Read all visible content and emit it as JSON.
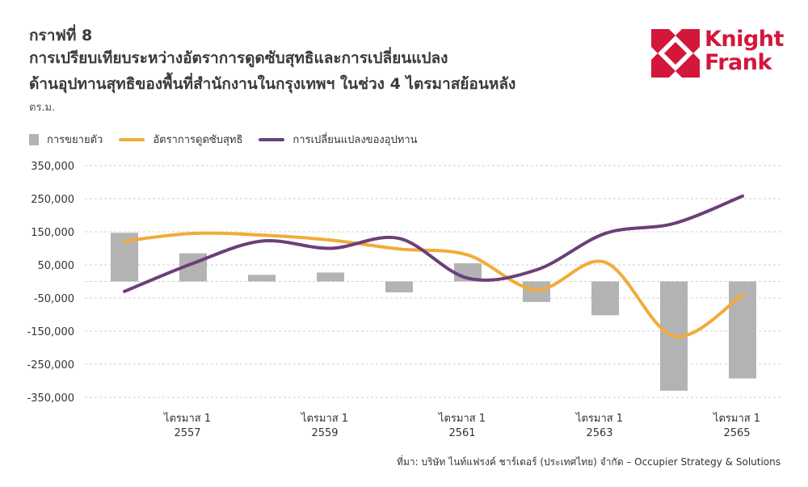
{
  "header": {
    "figure_number": "กราฟที่ 8",
    "title_line1": "การเปรียบเทียบระหว่างอัตราการดูดซับสุทธิและการเปลี่ยนแปลง",
    "title_line2": "ด้านอุปทานสุทธิของพื้นที่สำนักงานในกรุงเทพฯ ในช่วง 4 ไตรมาสย้อนหลัง",
    "unit": "ตร.ม."
  },
  "logo": {
    "line1": "Knight",
    "line2": "Frank",
    "color": "#d2173b"
  },
  "legend": [
    {
      "label": "การขยายตัว",
      "kind": "bar",
      "color": "#b3b3b3"
    },
    {
      "label": "อัตราการดูดซับสุทธิ",
      "kind": "line",
      "color": "#f2ab3a"
    },
    {
      "label": "การเปลี่ยนแปลงของอุปทาน",
      "kind": "line",
      "color": "#6b3f78"
    }
  ],
  "source": "ที่มา: บริษัท ไนท์แฟรงค์ ชาร์เตอร์ (ประเทศไทย) จำกัด – Occupier Strategy & Solutions",
  "chart_data": {
    "type": "bar",
    "title": "การเปรียบเทียบระหว่างอัตราการดูดซับสุทธิและการเปลี่ยนแปลงด้านอุปทานสุทธิของพื้นที่สำนักงานในกรุงเทพฯ ในช่วง 4 ไตรมาสย้อนหลัง",
    "ylabel": "ตร.ม.",
    "ylim": [
      -350000,
      350000
    ],
    "yticks": [
      350000,
      250000,
      150000,
      50000,
      -50000,
      -150000,
      -250000,
      -350000
    ],
    "ytick_labels": [
      "350,000",
      "250,000",
      "150,000",
      "50,000",
      "-50,000",
      "-150,000",
      "-250,000",
      "-350,000"
    ],
    "grid": true,
    "legend_position": "top-left",
    "x_labels": [
      {
        "index": 1,
        "line1": "ไตรมาส 1",
        "line2": "2557"
      },
      {
        "index": 3,
        "line1": "ไตรมาส 1",
        "line2": "2559"
      },
      {
        "index": 5,
        "line1": "ไตรมาส 1",
        "line2": "2561"
      },
      {
        "index": 7,
        "line1": "ไตรมาส 1",
        "line2": "2563"
      },
      {
        "index": 9,
        "line1": "ไตรมาส 1",
        "line2": "2565"
      }
    ],
    "series": [
      {
        "name": "การขยายตัว",
        "type": "bar",
        "color": "#b3b3b3",
        "values": [
          147000,
          85000,
          20000,
          27000,
          -33000,
          55000,
          -62000,
          -102000,
          -330000,
          -293000
        ]
      },
      {
        "name": "อัตราการดูดซับสุทธิ",
        "type": "line",
        "color": "#f2ab3a",
        "values": [
          122000,
          145000,
          140000,
          125000,
          98000,
          80000,
          -25000,
          58000,
          -165000,
          -40000
        ]
      },
      {
        "name": "การเปลี่ยนแปลงของอุปทาน",
        "type": "line",
        "color": "#6b3f78",
        "values": [
          -30000,
          55000,
          122000,
          100000,
          130000,
          10000,
          35000,
          145000,
          175000,
          258000
        ]
      }
    ]
  }
}
